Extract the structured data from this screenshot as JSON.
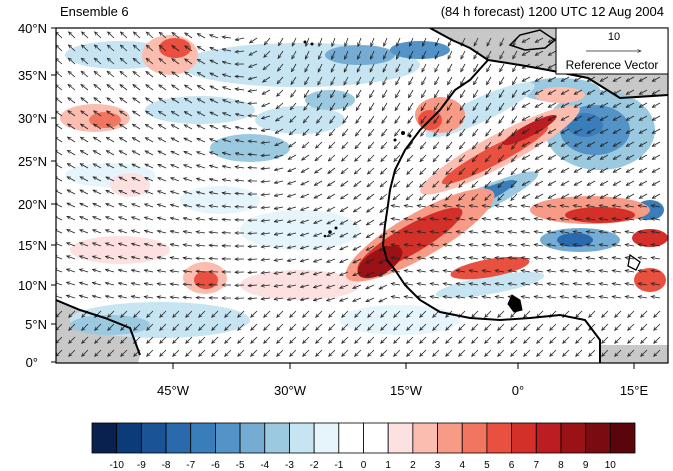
{
  "header": {
    "left_title": "Ensemble 6",
    "right_title": "(84 h forecast) 1200 UTC 12 Aug 2004"
  },
  "map": {
    "lat_labels": [
      "40°N",
      "35°N",
      "30°N",
      "25°N",
      "20°N",
      "15°N",
      "10°N",
      "5°N",
      "0°"
    ],
    "lon_labels": [
      "45°W",
      "30°W",
      "15°W",
      "0°",
      "15°E"
    ],
    "land_color": "#c8c8c8",
    "coast_color": "#000000"
  },
  "reference_vector": {
    "magnitude": "10",
    "label": "Reference Vector"
  },
  "colorbar": {
    "labels": [
      "-10",
      "-9",
      "-8",
      "-7",
      "-6",
      "-5",
      "-4",
      "-3",
      "-2",
      "-1",
      "0",
      "1",
      "2",
      "3",
      "4",
      "5",
      "6",
      "7",
      "8",
      "9",
      "10"
    ],
    "colors": [
      "#08214f",
      "#0c3b7a",
      "#1a5497",
      "#2a69ab",
      "#3a7dbb",
      "#5393c7",
      "#75acd3",
      "#9ac9e0",
      "#c6e4f1",
      "#e6f4fb",
      "#ffffff",
      "#ffffff",
      "#fde1e1",
      "#fbbdb0",
      "#f79b87",
      "#f2765f",
      "#e9503f",
      "#d3302a",
      "#bb1d22",
      "#9a1116",
      "#7a0b10",
      "#5a050a"
    ]
  },
  "colors": {
    "positive": "#e0483c",
    "negative": "#4a8fc8",
    "vector": "#1a1a1a"
  }
}
